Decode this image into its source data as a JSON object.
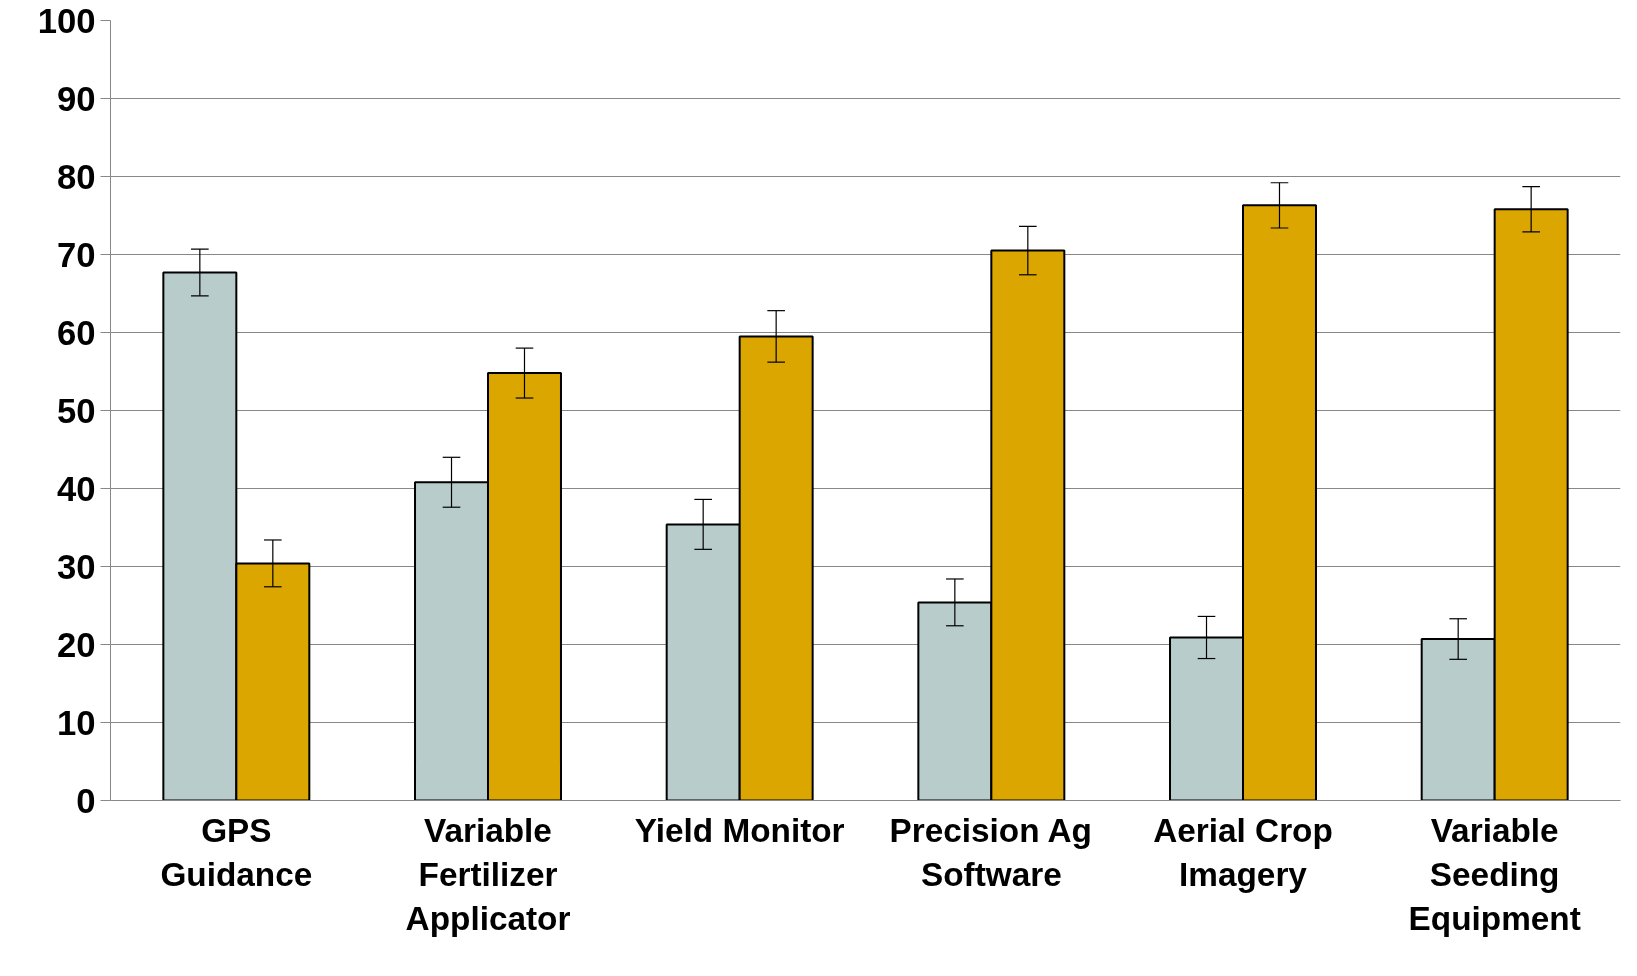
{
  "chart_data": {
    "type": "bar",
    "categories": [
      "GPS\nGuidance",
      "Variable\nFertilizer\nApplicator",
      "Yield Monitor",
      "Precision Ag\nSoftware",
      "Aerial Crop\nImagery",
      "Variable\nSeeding\nEquipment"
    ],
    "series": [
      {
        "color": "#b8cccc",
        "values": [
          67.7,
          40.8,
          35.4,
          25.4,
          20.9,
          20.7
        ],
        "errors": [
          3,
          3.2,
          3.2,
          3,
          2.7,
          2.6
        ]
      },
      {
        "color": "#dca600",
        "values": [
          30.4,
          54.8,
          59.5,
          70.5,
          76.3,
          75.8
        ],
        "errors": [
          3,
          3.2,
          3.3,
          3.1,
          2.9,
          2.9
        ]
      }
    ],
    "ylim": [
      0,
      100
    ],
    "yticks": [
      0,
      10,
      20,
      30,
      40,
      50,
      60,
      70,
      80,
      90,
      100
    ],
    "grid": "y"
  }
}
